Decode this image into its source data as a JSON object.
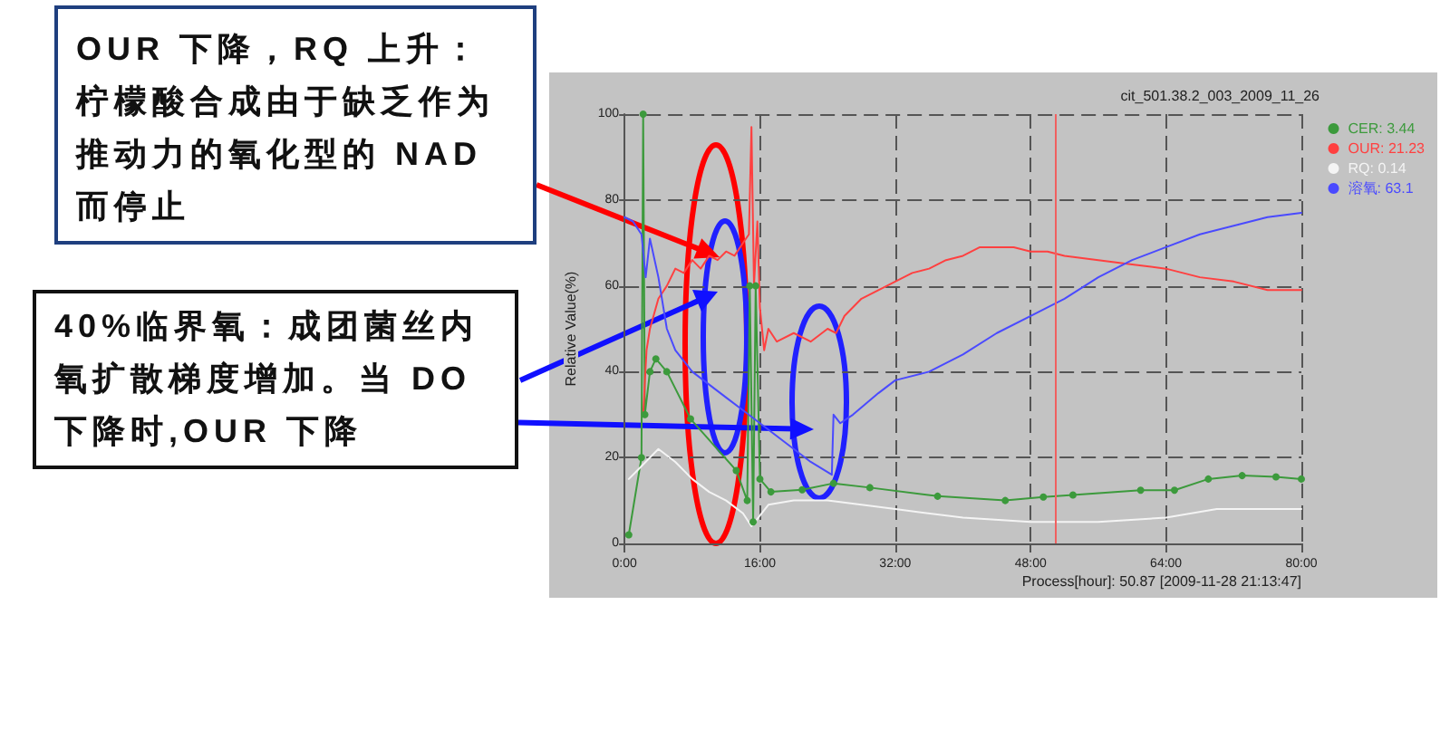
{
  "chart_data": {
    "type": "line",
    "title": "cit_501.38.2_003_2009_11_26",
    "xlabel": "Process[hour]: 50.87 [2009-11-28 21:13:47]",
    "ylabel": "Relative Value(%)",
    "xlim": [
      0,
      80
    ],
    "xticks": [
      {
        "value": 0,
        "label": "0:00"
      },
      {
        "value": 16,
        "label": "16:00"
      },
      {
        "value": 32,
        "label": "32:00"
      },
      {
        "value": 48,
        "label": "48:00"
      },
      {
        "value": 64,
        "label": "64:00"
      },
      {
        "value": 80,
        "label": "80:00"
      }
    ],
    "ylim": [
      0,
      100
    ],
    "yticks": [
      0,
      20,
      40,
      60,
      80,
      100
    ],
    "grid": true,
    "line_style": "solid",
    "marker": "none",
    "legend": "top right",
    "ref_lines": [
      {
        "axis": "x",
        "value": 50.87,
        "color": "#f06060"
      }
    ],
    "annotations": [
      "OUR 下降，RQ 上升：柠檬酸合成由于缺乏作为推动力的氧化型的 NAD 而停止",
      "40%临界氧：成团菌丝内氧扩散梯度增加。当 DO 下降时,OUR 下降"
    ],
    "series": [
      {
        "name": "CER: 3.44",
        "color": "#3c9a3c",
        "marker": "circle",
        "x": [
          0.5,
          2,
          2.2,
          2.4,
          3,
          3.7,
          5,
          7.8,
          13.2,
          14.5,
          14.8,
          15.2,
          15.5,
          16,
          17.3,
          21,
          24.7,
          29,
          37,
          45,
          49.5,
          53,
          61,
          65,
          69,
          73,
          77,
          80
        ],
        "values": [
          2,
          20,
          100,
          30,
          40,
          43,
          40,
          29,
          17,
          10,
          60,
          5,
          60,
          15,
          12,
          12.5,
          14,
          13,
          11,
          10,
          10.8,
          11.3,
          12.4,
          12.4,
          15,
          15.8,
          15.5,
          15
        ]
      },
      {
        "name": "OUR: 21.23",
        "color": "#ff4040",
        "x": [
          2.2,
          2.6,
          3,
          4,
          5,
          6,
          7,
          8,
          9,
          10,
          11,
          12,
          13,
          14,
          14.7,
          15,
          15.3,
          15.7,
          16,
          16.5,
          17,
          18,
          20,
          22,
          24,
          25,
          26,
          28,
          30,
          32,
          34,
          36,
          38,
          40,
          42,
          44,
          46,
          48,
          50,
          52,
          56,
          60,
          64,
          68,
          72,
          76,
          80
        ],
        "values": [
          30,
          45,
          50,
          57,
          60,
          64,
          63,
          66,
          64,
          67,
          66,
          68,
          67,
          70,
          72,
          97,
          60,
          75,
          55,
          45,
          50,
          47,
          49,
          47,
          50,
          49,
          53,
          57,
          59,
          61,
          63,
          64,
          66,
          67,
          69,
          69,
          69,
          68,
          68,
          67,
          66,
          65,
          64,
          62,
          61,
          59,
          59
        ]
      },
      {
        "name": "RQ: 0.14",
        "color": "#f4f4f4",
        "x": [
          0.5,
          2,
          4,
          6,
          8,
          10,
          12,
          14,
          15,
          17,
          20,
          24,
          28,
          32,
          40,
          48,
          56,
          64,
          70,
          80
        ],
        "values": [
          15,
          18,
          22,
          19,
          15,
          12,
          10,
          7,
          4,
          9,
          10,
          10,
          9,
          8,
          6,
          5,
          5,
          6,
          8,
          8
        ]
      },
      {
        "name": "溶氧: 63.1",
        "color": "#4a4aff",
        "x": [
          0,
          1,
          2,
          2.5,
          3,
          4,
          5,
          6,
          8,
          10,
          12,
          14,
          16,
          18,
          20,
          22,
          24.5,
          24.7,
          25.5,
          27,
          30,
          32,
          36,
          40,
          44,
          48,
          52,
          56,
          60,
          64,
          68,
          72,
          76,
          80
        ],
        "values": [
          76,
          75,
          72,
          62,
          71,
          62,
          50,
          45,
          40,
          37,
          34,
          31,
          28,
          25,
          22,
          19,
          16,
          30,
          28,
          30,
          35,
          38,
          40,
          44,
          49,
          53,
          57,
          62,
          66,
          69,
          72,
          74,
          76,
          77
        ]
      }
    ]
  }
}
